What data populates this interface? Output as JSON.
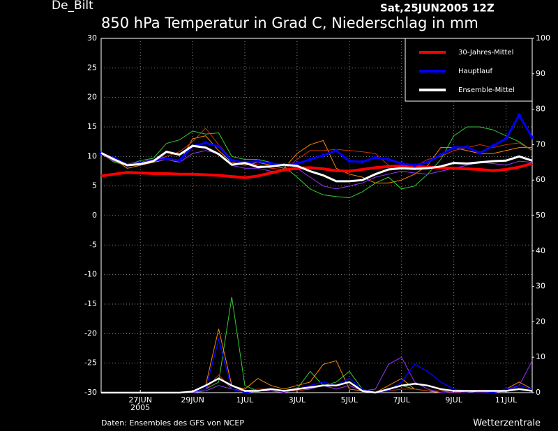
{
  "chart_data": {
    "type": "line",
    "station": "De_Bilt",
    "run": "Sat,25JUN2005 12Z",
    "title": "850 hPa Temperatur in Grad C, Niederschlag in mm",
    "source": "Daten: Ensembles des GFS von NCEP",
    "brand": "Wetterzentrale",
    "year_label": "2005",
    "categories": [
      null,
      null,
      null,
      "27JUN",
      null,
      null,
      null,
      "29JUN",
      null,
      null,
      null,
      "1JUL",
      null,
      null,
      null,
      "3JUL",
      null,
      null,
      null,
      "5JUL",
      null,
      null,
      null,
      "7JUL",
      null,
      null,
      null,
      "9JUL",
      null,
      null,
      null,
      "11JUL",
      null,
      null
    ],
    "ylim": [
      -30,
      30
    ],
    "yticks": [
      -30,
      -25,
      -20,
      -15,
      -10,
      -5,
      0,
      5,
      10,
      15,
      20,
      25,
      30
    ],
    "y2lim": [
      0,
      100
    ],
    "y2ticks": [
      0,
      10,
      20,
      30,
      40,
      50,
      60,
      70,
      80,
      90,
      100
    ],
    "grid": true,
    "legend": "upper right",
    "series": [
      {
        "name": "30-Jahres-Mittel",
        "color": "#ff0000",
        "values": [
          6.7,
          7.0,
          7.3,
          7.2,
          7.1,
          7.1,
          7.0,
          7.0,
          6.9,
          6.8,
          6.6,
          6.4,
          6.7,
          7.2,
          7.7,
          8.0,
          8.1,
          7.9,
          7.6,
          7.5,
          7.8,
          8.1,
          8.3,
          8.4,
          8.3,
          8.2,
          8.1,
          8.0,
          7.9,
          7.8,
          7.6,
          7.8,
          8.2,
          8.8
        ]
      },
      {
        "name": "Hauptlauf",
        "color": "#0000ff",
        "values": [
          10.5,
          9.7,
          8.6,
          8.8,
          9.3,
          9.6,
          9.3,
          11.7,
          12.3,
          11.7,
          9.3,
          9.0,
          9.2,
          8.8,
          8.6,
          8.8,
          9.5,
          10.2,
          11.0,
          9.2,
          9.1,
          9.8,
          9.5,
          8.8,
          8.5,
          9.0,
          10.3,
          11.5,
          11.6,
          10.6,
          11.8,
          13.0,
          17.0,
          13.2
        ],
        "precip_values": [
          0,
          0,
          0,
          0,
          0,
          0,
          0,
          0.3,
          1,
          15,
          1,
          0,
          0.5,
          1,
          0.5,
          1,
          2,
          3,
          2,
          4,
          1,
          0,
          0.5,
          3,
          8,
          6,
          3,
          1,
          0.5,
          0.5,
          0,
          1,
          2,
          1
        ]
      },
      {
        "name": "Ensemble-Mittel",
        "color": "#ffffff",
        "values": [
          10.6,
          9.5,
          8.5,
          8.7,
          9.2,
          10.8,
          10.3,
          11.8,
          11.5,
          10.4,
          8.6,
          8.9,
          8.2,
          8.3,
          8.6,
          8.4,
          7.5,
          6.8,
          5.8,
          5.8,
          6.0,
          7.0,
          7.8,
          8.0,
          7.9,
          8.0,
          8.3,
          8.9,
          8.8,
          9.0,
          9.2,
          9.3,
          10.0,
          9.3
        ],
        "precip_values": [
          0,
          0,
          0,
          0,
          0,
          0,
          0,
          0.3,
          2,
          4,
          2,
          0.5,
          0.5,
          1,
          0.5,
          1,
          1.5,
          2,
          2,
          3,
          0.5,
          0,
          1,
          2,
          2.5,
          2,
          1,
          0.5,
          0.5,
          0.5,
          0.5,
          0.5,
          1,
          0.5
        ]
      }
    ],
    "members": [
      {
        "color": "#33cc33",
        "values": [
          10.6,
          9.0,
          8.6,
          9.3,
          9.7,
          12.2,
          12.8,
          14.3,
          13.8,
          14.0,
          10.0,
          9.5,
          9.5,
          9.0,
          8.3,
          6.5,
          4.5,
          3.5,
          3.2,
          3.0,
          4.0,
          5.5,
          6.5,
          4.5,
          5.0,
          7.0,
          9.5,
          13.5,
          15.0,
          15.0,
          14.5,
          13.5,
          12.5,
          11.0
        ],
        "precip_values": [
          0,
          0,
          0,
          0,
          0,
          0,
          0,
          0,
          1,
          3,
          27,
          2,
          0.5,
          1,
          0.5,
          1,
          6,
          2,
          3,
          6,
          1,
          0,
          1,
          2,
          1,
          0.5,
          0.5,
          0,
          0,
          0.5,
          0,
          1,
          2,
          1
        ]
      },
      {
        "color": "#ff8800",
        "values": [
          10.5,
          9.5,
          8.0,
          8.5,
          9.0,
          9.5,
          9.0,
          13.0,
          13.5,
          11.0,
          9.0,
          8.5,
          9.0,
          8.5,
          8.0,
          10.5,
          12.0,
          12.7,
          8.0,
          7.0,
          6.5,
          5.5,
          5.5,
          6.0,
          7.0,
          8.5,
          11.5,
          11.5,
          11.0,
          10.5,
          10.5,
          11.0,
          11.5,
          11.5
        ],
        "precip_values": [
          0,
          0,
          0,
          0,
          0,
          0,
          0,
          0.5,
          2,
          18,
          2,
          1,
          4,
          2,
          1,
          2,
          3,
          8,
          9,
          1,
          0.5,
          0,
          2,
          4,
          1,
          0.5,
          0,
          0,
          0.5,
          0.5,
          0,
          1,
          3,
          1
        ]
      },
      {
        "color": "#cc3300",
        "values": [
          10.3,
          9.3,
          8.4,
          8.9,
          9.4,
          10.0,
          10.8,
          12.5,
          14.8,
          12.0,
          9.5,
          9.0,
          8.6,
          8.0,
          7.8,
          9.5,
          11.0,
          11.0,
          11.2,
          11.0,
          10.8,
          10.5,
          8.5,
          8.0,
          8.3,
          9.5,
          10.0,
          11.0,
          11.5,
          12.0,
          11.5,
          12.0,
          12.3,
          11.0
        ],
        "precip_values": [
          0,
          0,
          0,
          0,
          0,
          0,
          0,
          0.2,
          1,
          5,
          1,
          0.5,
          1,
          1,
          0.5,
          0.5,
          1,
          2,
          1,
          2,
          0.5,
          0,
          0.5,
          1,
          1,
          0.5,
          0.5,
          0,
          0.5,
          0.5,
          0,
          0.5,
          1,
          0.5
        ]
      },
      {
        "color": "#9933ff",
        "values": [
          10.4,
          9.2,
          8.8,
          9.0,
          9.5,
          9.8,
          9.0,
          10.5,
          11.0,
          10.5,
          8.5,
          8.0,
          8.0,
          7.5,
          7.5,
          8.0,
          6.5,
          5.0,
          4.5,
          5.0,
          5.5,
          6.5,
          7.0,
          7.5,
          7.2,
          7.0,
          7.5,
          8.0,
          8.5,
          9.0,
          8.8,
          8.5,
          9.2,
          9.0
        ],
        "precip_values": [
          0,
          0,
          0,
          0,
          0,
          0,
          0,
          0,
          0.5,
          2,
          1,
          0,
          0.5,
          0.5,
          0,
          1,
          1,
          2,
          1,
          2,
          0.5,
          1,
          8,
          10,
          3,
          1,
          0,
          0,
          0,
          0,
          0,
          0.5,
          2,
          9
        ]
      }
    ]
  }
}
